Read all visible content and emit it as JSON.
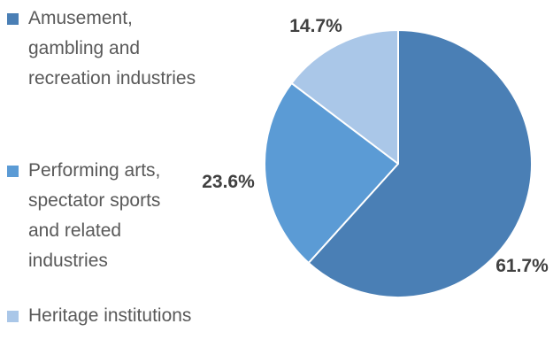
{
  "chart_data": {
    "type": "pie",
    "categories": [
      "Amusement, gambling and recreation industries",
      "Performing arts, spectator sports and related industries",
      "Heritage institutions"
    ],
    "values": [
      61.7,
      23.6,
      14.7
    ],
    "labels": [
      "61.7%",
      "23.6%",
      "14.7%"
    ],
    "colors": [
      "#4a7fb5",
      "#5b9bd5",
      "#aac7e8"
    ],
    "legend_position": "left",
    "start_angle": "12 o'clock",
    "direction": "clockwise"
  }
}
